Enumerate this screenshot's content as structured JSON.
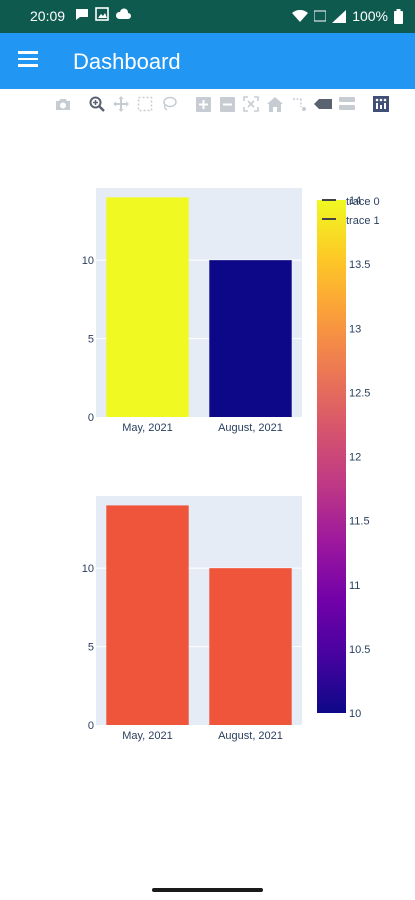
{
  "status_bar": {
    "time": "20:09",
    "battery": "100%",
    "icons": [
      "message-icon",
      "gallery-icon",
      "cloud-icon",
      "wifi-icon",
      "volte-icon",
      "signal-icon",
      "battery-icon"
    ]
  },
  "app_bar": {
    "title": "Dashboard"
  },
  "modebar": {
    "buttons": [
      "camera-icon",
      "zoom-icon",
      "pan-icon",
      "box-select-icon",
      "lasso-select-icon",
      "zoom-in-icon",
      "zoom-out-icon",
      "autoscale-icon",
      "reset-axes-icon",
      "spike-lines-icon",
      "hover-closest-icon",
      "hover-compare-icon",
      "plotly-logo-icon"
    ]
  },
  "chart_data": {
    "type": "bar",
    "categories": [
      "May, 2021",
      "August, 2021"
    ],
    "series": [
      {
        "name": "trace 0",
        "values": [
          14,
          10
        ],
        "colors": [
          "#f0f921",
          "#0d0887"
        ]
      },
      {
        "name": "trace 1",
        "values": [
          14,
          10
        ],
        "color": "#ef553b"
      }
    ],
    "ylim": [
      0,
      14.6
    ],
    "yticks": [
      0,
      5,
      10
    ],
    "colorbar": {
      "min": 10,
      "max": 14,
      "ticks": [
        "10",
        "10.5",
        "11",
        "11.5",
        "12",
        "12.5",
        "13",
        "13.5",
        "14"
      ],
      "colorscale": "plasma"
    },
    "legend": "top-right",
    "plot_bg": "#e5ecf6",
    "grid": true
  }
}
